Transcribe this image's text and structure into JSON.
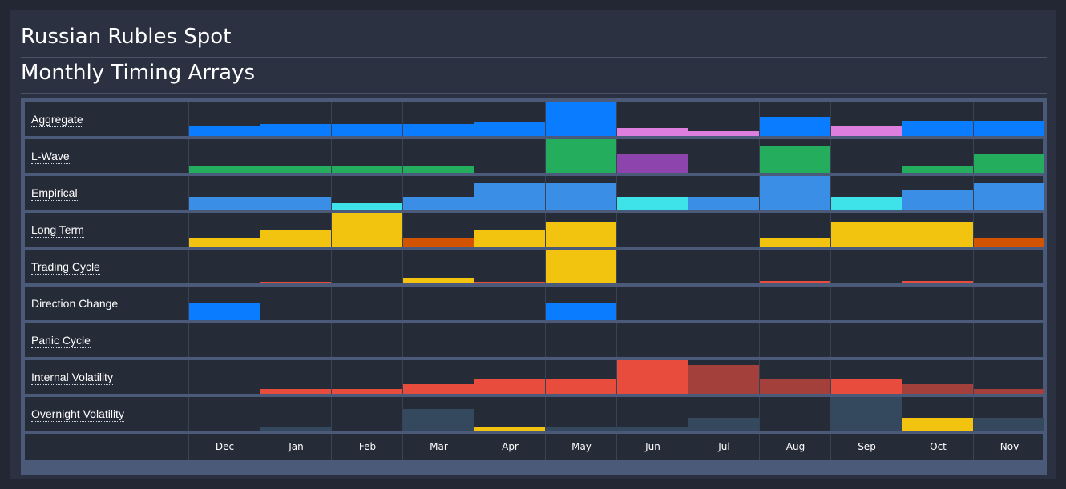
{
  "header": {
    "title": "Russian Rubles Spot",
    "subtitle": "Monthly Timing Arrays"
  },
  "colors": {
    "blue": "#0a7cff",
    "pink": "#de7fe0",
    "green": "#23ad5d",
    "purple": "#8e44ad",
    "lightblue": "#3a8ee6",
    "cyan": "#3de3e8",
    "yellow": "#f2c30f",
    "orange": "#d35400",
    "red": "#e74c3c",
    "darkred": "#a4403b",
    "slate": "#34495e"
  },
  "chart_data": {
    "type": "heatmap",
    "title": "Monthly Timing Arrays",
    "months": [
      "Dec",
      "Jan",
      "Feb",
      "Mar",
      "Apr",
      "May",
      "Jun",
      "Jul",
      "Aug",
      "Sep",
      "Oct",
      "Nov"
    ],
    "value_scale": "relative bar height per row (0-1)",
    "series": [
      {
        "name": "Aggregate",
        "values": [
          0.3,
          0.36,
          0.36,
          0.36,
          0.42,
          1.0,
          0.24,
          0.14,
          0.56,
          0.3,
          0.46,
          0.46
        ],
        "colors": [
          "blue",
          "blue",
          "blue",
          "blue",
          "blue",
          "blue",
          "pink",
          "pink",
          "blue",
          "pink",
          "blue",
          "blue"
        ]
      },
      {
        "name": "L-Wave",
        "values": [
          0.19,
          0.19,
          0.19,
          0.19,
          0,
          1.0,
          0.58,
          0,
          0.78,
          0,
          0.19,
          0.58
        ],
        "colors": [
          "green",
          "green",
          "green",
          "green",
          "green",
          "green",
          "purple",
          "green",
          "green",
          "green",
          "green",
          "green"
        ]
      },
      {
        "name": "Empirical",
        "values": [
          0.38,
          0.38,
          0.19,
          0.38,
          0.78,
          0.78,
          0.38,
          0.38,
          1.0,
          0.38,
          0.58,
          0.78
        ],
        "colors": [
          "lightblue",
          "lightblue",
          "cyan",
          "lightblue",
          "lightblue",
          "lightblue",
          "cyan",
          "lightblue",
          "lightblue",
          "cyan",
          "lightblue",
          "lightblue"
        ]
      },
      {
        "name": "Long Term",
        "values": [
          0.24,
          0.48,
          1.0,
          0.24,
          0.48,
          0.74,
          0,
          0,
          0.24,
          0.74,
          0.74,
          0.24
        ],
        "colors": [
          "yellow",
          "yellow",
          "yellow",
          "orange",
          "yellow",
          "yellow",
          "yellow",
          "yellow",
          "yellow",
          "yellow",
          "yellow",
          "orange"
        ]
      },
      {
        "name": "Trading Cycle",
        "values": [
          0,
          0.05,
          0,
          0.17,
          0.05,
          1.0,
          0,
          0,
          0.07,
          0,
          0.07,
          0
        ],
        "colors": [
          "red",
          "red",
          "red",
          "yellow",
          "red",
          "yellow",
          "red",
          "red",
          "red",
          "red",
          "red",
          "red"
        ]
      },
      {
        "name": "Direction Change",
        "values": [
          0.5,
          0,
          0,
          0,
          0,
          0.5,
          0,
          0,
          0,
          0,
          0,
          0
        ],
        "colors": [
          "blue",
          "blue",
          "blue",
          "blue",
          "blue",
          "blue",
          "blue",
          "blue",
          "blue",
          "blue",
          "blue",
          "blue"
        ]
      },
      {
        "name": "Panic Cycle",
        "values": [
          0,
          0,
          0,
          0,
          0,
          0,
          0,
          0,
          0,
          0,
          0,
          0
        ],
        "colors": [
          "red",
          "red",
          "red",
          "red",
          "red",
          "red",
          "red",
          "red",
          "red",
          "red",
          "red",
          "red"
        ]
      },
      {
        "name": "Internal Volatility",
        "values": [
          0,
          0.14,
          0.14,
          0.29,
          0.43,
          0.43,
          1.0,
          0.86,
          0.43,
          0.43,
          0.29,
          0.14
        ],
        "colors": [
          "red",
          "red",
          "red",
          "red",
          "red",
          "red",
          "red",
          "darkred",
          "darkred",
          "red",
          "darkred",
          "darkred"
        ]
      },
      {
        "name": "Overnight Volatility",
        "values": [
          0,
          0.12,
          0,
          0.65,
          0.12,
          0.12,
          0.12,
          0.38,
          0,
          1.0,
          0.38,
          0.38
        ],
        "colors": [
          "slate",
          "slate",
          "slate",
          "slate",
          "yellow",
          "slate",
          "slate",
          "slate",
          "slate",
          "slate",
          "yellow",
          "slate"
        ]
      }
    ]
  }
}
